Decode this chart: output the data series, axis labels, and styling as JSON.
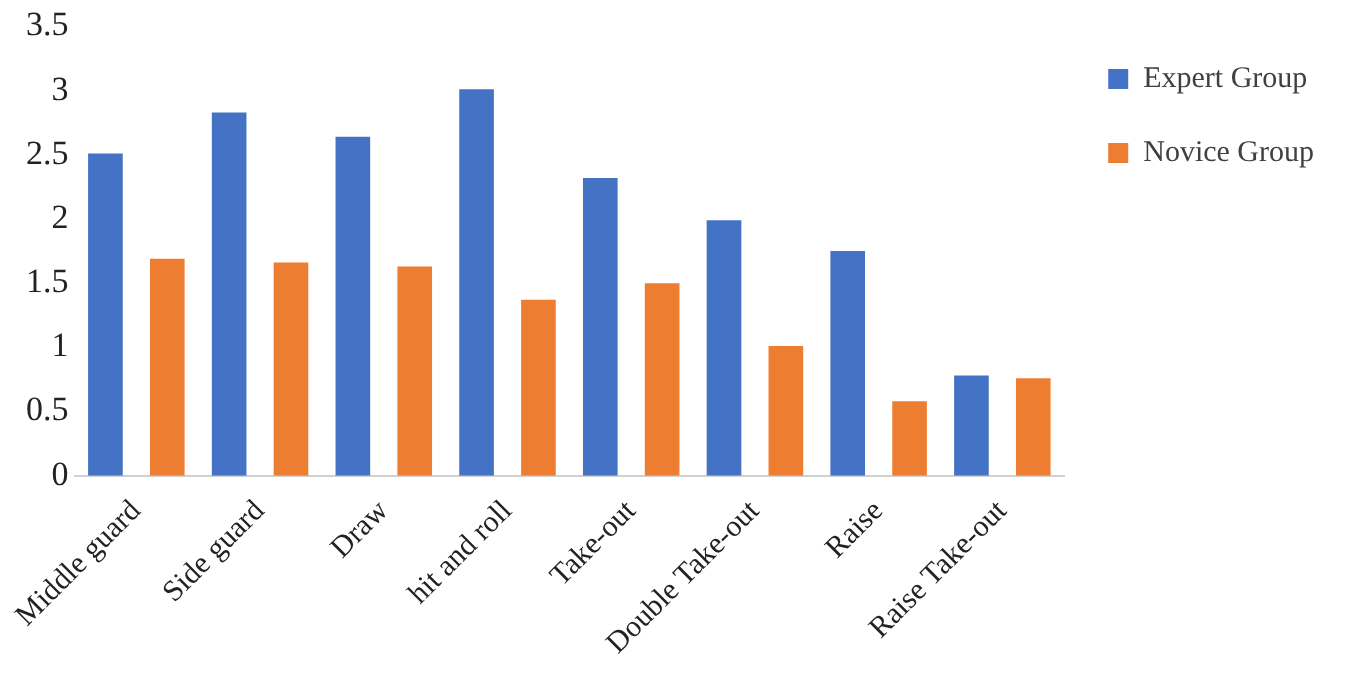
{
  "chart_data": {
    "type": "bar",
    "categories": [
      "Middle guard",
      "Side guard",
      "Draw",
      "hit and roll",
      "Take-out",
      "Double Take-out",
      "Raise",
      "Raise Take-out"
    ],
    "series": [
      {
        "name": "Expert Group",
        "color": "#4472c4",
        "values": [
          2.51,
          2.83,
          2.64,
          3.01,
          2.32,
          1.99,
          1.75,
          0.78
        ]
      },
      {
        "name": "Novice Group",
        "color": "#ed7d31",
        "values": [
          1.69,
          1.66,
          1.63,
          1.37,
          1.5,
          1.01,
          0.58,
          0.76
        ]
      }
    ],
    "ylim": [
      0,
      3.5
    ],
    "yticks": [
      0,
      0.5,
      1,
      1.5,
      2,
      2.5,
      3,
      3.5
    ],
    "grid": false,
    "legend": "right"
  }
}
